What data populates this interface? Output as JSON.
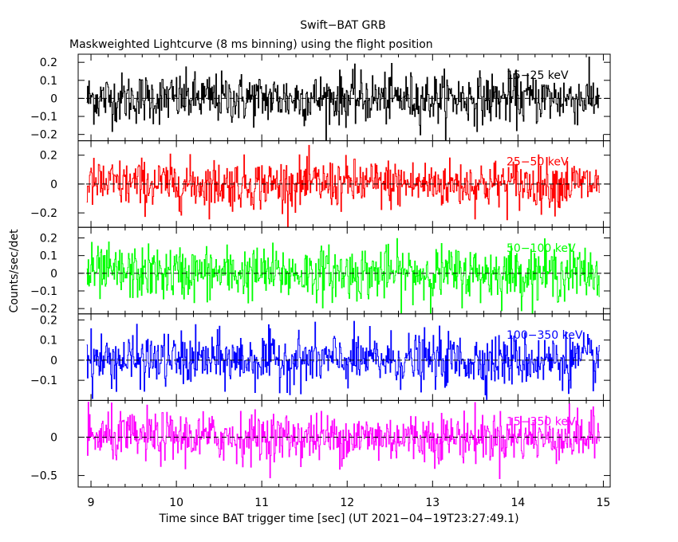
{
  "chart_data": {
    "type": "line",
    "title": "Swift−BAT GRB",
    "subtitle": "Maskweighted Lightcurve (8 ms binning) using the flight position",
    "xlabel": "Time since BAT trigger time [sec] (UT 2021−04−19T23:27:49.1)",
    "ylabel": "Counts/sec/det",
    "xlim": [
      8.85,
      15.08
    ],
    "x_ticks": [
      9,
      10,
      11,
      12,
      13,
      14,
      15
    ],
    "x_tick_labels": [
      "9",
      "10",
      "11",
      "12",
      "13",
      "14",
      "15"
    ],
    "data_x_range": [
      8.95,
      14.95
    ],
    "bin_size": 0.008,
    "panels": [
      {
        "band": "15−25 keV",
        "color": "#000000",
        "ylim": [
          -0.235,
          0.245
        ],
        "y_ticks": [
          -0.2,
          -0.1,
          0,
          0.1,
          0.2
        ],
        "y_tick_labels": [
          "−0.2",
          "−0.1",
          "0",
          "0.1",
          "0.2"
        ],
        "noise_sigma": 0.07
      },
      {
        "band": "25−50 keV",
        "color": "#ff0000",
        "ylim": [
          -0.3,
          0.3
        ],
        "y_ticks": [
          -0.2,
          0,
          0.2
        ],
        "y_tick_labels": [
          "−0.2",
          "0",
          "0.2"
        ],
        "noise_sigma": 0.085
      },
      {
        "band": "50−100 keV",
        "color": "#00ff00",
        "ylim": [
          -0.23,
          0.26
        ],
        "y_ticks": [
          -0.2,
          -0.1,
          0,
          0.1,
          0.2
        ],
        "y_tick_labels": [
          "−0.2",
          "−0.1",
          "0",
          "0.1",
          "0.2"
        ],
        "noise_sigma": 0.075
      },
      {
        "band": "100−350 keV",
        "color": "#0000ff",
        "ylim": [
          -0.2,
          0.23
        ],
        "y_ticks": [
          -0.1,
          0,
          0.1,
          0.2
        ],
        "y_tick_labels": [
          "−0.1",
          "0",
          "0.1",
          "0.2"
        ],
        "noise_sigma": 0.065
      },
      {
        "band": "15−350 keV",
        "color": "#ff00ff",
        "ylim": [
          -0.65,
          0.48
        ],
        "y_ticks": [
          -0.5,
          0
        ],
        "y_tick_labels": [
          "−0.5",
          "0"
        ],
        "noise_sigma": 0.16
      }
    ]
  }
}
